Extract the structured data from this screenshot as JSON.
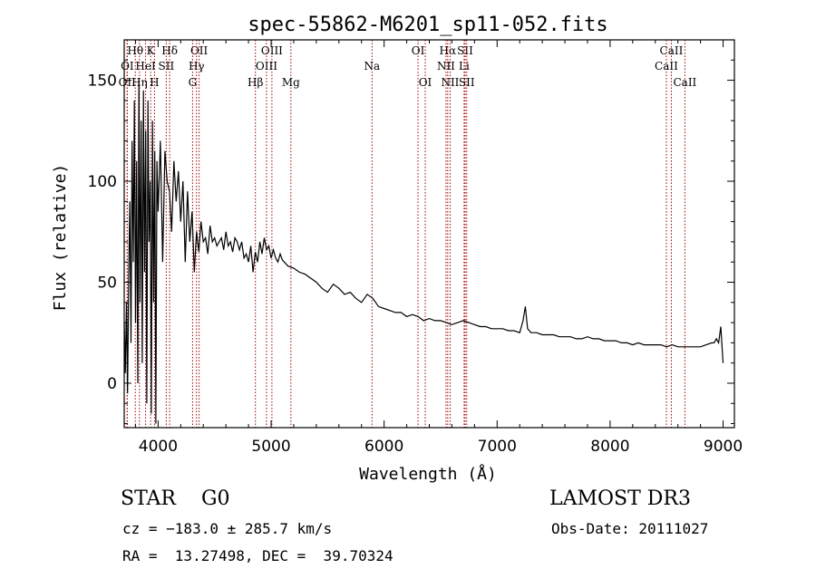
{
  "chart_data": {
    "type": "line",
    "title": "spec-55862-M6201_sp11-052.fits",
    "xlabel": "Wavelength (Å)",
    "ylabel": "Flux (relative)",
    "xlim": [
      3700,
      9100
    ],
    "ylim": [
      -22,
      170
    ],
    "xticks": [
      4000,
      5000,
      6000,
      7000,
      8000,
      9000
    ],
    "yticks": [
      0,
      50,
      100,
      150
    ],
    "series": [
      {
        "name": "flux",
        "x": [
          3700,
          3710,
          3720,
          3730,
          3740,
          3750,
          3760,
          3770,
          3780,
          3790,
          3800,
          3810,
          3820,
          3830,
          3840,
          3850,
          3860,
          3870,
          3880,
          3890,
          3900,
          3910,
          3920,
          3930,
          3940,
          3950,
          3960,
          3970,
          3980,
          3990,
          4000,
          4020,
          4040,
          4060,
          4080,
          4100,
          4120,
          4140,
          4160,
          4180,
          4200,
          4220,
          4240,
          4260,
          4280,
          4300,
          4320,
          4340,
          4360,
          4380,
          4400,
          4420,
          4440,
          4460,
          4480,
          4500,
          4520,
          4540,
          4560,
          4580,
          4600,
          4620,
          4640,
          4660,
          4680,
          4700,
          4720,
          4740,
          4760,
          4780,
          4800,
          4820,
          4840,
          4860,
          4880,
          4900,
          4920,
          4940,
          4960,
          4980,
          5000,
          5020,
          5040,
          5060,
          5080,
          5100,
          5150,
          5200,
          5250,
          5300,
          5350,
          5400,
          5450,
          5500,
          5550,
          5600,
          5650,
          5700,
          5750,
          5800,
          5850,
          5900,
          5950,
          6000,
          6050,
          6100,
          6150,
          6200,
          6250,
          6300,
          6350,
          6400,
          6450,
          6500,
          6550,
          6600,
          6650,
          6700,
          6750,
          6800,
          6850,
          6900,
          6950,
          7000,
          7050,
          7100,
          7150,
          7200,
          7230,
          7250,
          7270,
          7300,
          7350,
          7400,
          7450,
          7500,
          7550,
          7600,
          7650,
          7700,
          7750,
          7800,
          7850,
          7900,
          7950,
          8000,
          8050,
          8100,
          8150,
          8200,
          8250,
          8300,
          8350,
          8400,
          8450,
          8500,
          8550,
          8600,
          8650,
          8700,
          8750,
          8800,
          8850,
          8900,
          8920,
          8940,
          8960,
          8980,
          9000
        ],
        "y": [
          30,
          5,
          40,
          -5,
          55,
          90,
          20,
          120,
          60,
          140,
          30,
          110,
          0,
          150,
          40,
          130,
          10,
          145,
          55,
          125,
          -10,
          140,
          70,
          100,
          -15,
          130,
          40,
          115,
          -20,
          110,
          85,
          120,
          60,
          115,
          100,
          95,
          75,
          110,
          90,
          105,
          80,
          100,
          60,
          95,
          70,
          85,
          55,
          75,
          65,
          80,
          70,
          72,
          64,
          78,
          70,
          72,
          68,
          70,
          72,
          66,
          75,
          68,
          70,
          65,
          72,
          70,
          66,
          70,
          62,
          64,
          60,
          68,
          55,
          65,
          60,
          70,
          64,
          72,
          66,
          68,
          62,
          66,
          62,
          60,
          64,
          61,
          58,
          57,
          55,
          54,
          52,
          50,
          47,
          45,
          49,
          47,
          44,
          45,
          42,
          40,
          44,
          42,
          38,
          37,
          36,
          35,
          35,
          33,
          34,
          33,
          31,
          32,
          31,
          31,
          30,
          29,
          30,
          31,
          30,
          29,
          28,
          28,
          27,
          27,
          27,
          26,
          26,
          25,
          31,
          38,
          27,
          25,
          25,
          24,
          24,
          24,
          23,
          23,
          23,
          22,
          22,
          23,
          22,
          22,
          21,
          21,
          21,
          20,
          20,
          19,
          20,
          19,
          19,
          19,
          19,
          18,
          19,
          18,
          18,
          18,
          18,
          18,
          19,
          20,
          20,
          22,
          20,
          28,
          10
        ]
      }
    ],
    "emission_lines": [
      {
        "label": "Hθ",
        "x": 3798,
        "row": 0
      },
      {
        "label": "K",
        "x": 3934,
        "row": 0
      },
      {
        "label": "Hδ",
        "x": 4102,
        "row": 0
      },
      {
        "label": "OII",
        "x": 4363,
        "row": 0
      },
      {
        "label": "OIII",
        "x": 5007,
        "row": 0
      },
      {
        "label": "OI",
        "x": 6300,
        "row": 0
      },
      {
        "label": "Hα",
        "x": 6563,
        "row": 0
      },
      {
        "label": "SII",
        "x": 6717,
        "row": 0
      },
      {
        "label": "CaII",
        "x": 8542,
        "row": 0
      },
      {
        "label": "OI",
        "x": 3727,
        "row": 1
      },
      {
        "label": "HeI",
        "x": 3889,
        "row": 1
      },
      {
        "label": "SII",
        "x": 4072,
        "row": 1
      },
      {
        "label": "Hγ",
        "x": 4340,
        "row": 1
      },
      {
        "label": "OIII",
        "x": 4959,
        "row": 1
      },
      {
        "label": "Na",
        "x": 5893,
        "row": 1
      },
      {
        "label": "NII",
        "x": 6548,
        "row": 1
      },
      {
        "label": "Li",
        "x": 6708,
        "row": 1
      },
      {
        "label": "CaII",
        "x": 8498,
        "row": 1
      },
      {
        "label": "OII",
        "x": 3726,
        "row": 2
      },
      {
        "label": "Hη",
        "x": 3835,
        "row": 2
      },
      {
        "label": "H",
        "x": 3968,
        "row": 2
      },
      {
        "label": "G",
        "x": 4305,
        "row": 2
      },
      {
        "label": "Hβ",
        "x": 4861,
        "row": 2
      },
      {
        "label": "Mg",
        "x": 5175,
        "row": 2
      },
      {
        "label": "OI",
        "x": 6364,
        "row": 2
      },
      {
        "label": "NII",
        "x": 6584,
        "row": 2
      },
      {
        "label": "SII",
        "x": 6731,
        "row": 2
      },
      {
        "label": "CaII",
        "x": 8662,
        "row": 2
      }
    ],
    "line_color": "#000000",
    "marker_color": "#a00000"
  },
  "info": {
    "object": "STAR    G0",
    "survey": "LAMOST DR3",
    "cz": "cz = −183.0 ± 285.7 km/s",
    "obs_date": "Obs-Date: 20111027",
    "coords": "RA =  13.27498, DEC =  39.70324"
  }
}
